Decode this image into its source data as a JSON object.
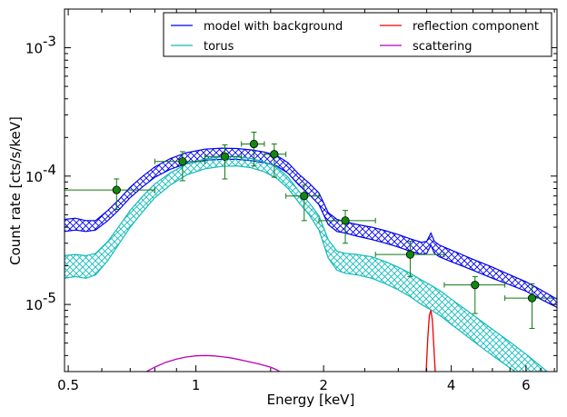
{
  "chart_data": {
    "type": "line",
    "xlabel": "Energy [keV]",
    "ylabel": "Count rate [cts/s/keV]",
    "x_scale": "log",
    "y_scale": "log",
    "xlim": [
      0.49,
      7.1
    ],
    "ylim": [
      3e-06,
      0.002
    ],
    "x_ticks": [
      {
        "value": 0.5,
        "label": "0.5"
      },
      {
        "value": 1,
        "label": "1"
      },
      {
        "value": 2,
        "label": "2"
      },
      {
        "value": 4,
        "label": "4"
      },
      {
        "value": 6,
        "label": "6"
      }
    ],
    "y_ticks": [
      {
        "value": 1e-05,
        "base": "10",
        "exp": "-5"
      },
      {
        "value": 0.0001,
        "base": "10",
        "exp": "-4"
      },
      {
        "value": 0.001,
        "base": "10",
        "exp": "-3"
      }
    ],
    "legend": {
      "placement": "top-right",
      "columns": 2,
      "entries": [
        {
          "label": "model with background",
          "color": "#0000ee"
        },
        {
          "label": "reflection component",
          "color": "#ee0000"
        },
        {
          "label": "torus",
          "color": "#11bbbb"
        },
        {
          "label": "scattering",
          "color": "#bb00bb"
        }
      ]
    },
    "grid": false,
    "series": [
      {
        "name": "model with background",
        "color": "#0000ee",
        "style": "hatched-band",
        "x": [
          0.49,
          0.52,
          0.55,
          0.58,
          0.62,
          0.66,
          0.7,
          0.75,
          0.8,
          0.87,
          0.95,
          1.05,
          1.15,
          1.25,
          1.35,
          1.45,
          1.55,
          1.65,
          1.75,
          1.85,
          1.95,
          2.05,
          2.15,
          2.25,
          2.4,
          2.6,
          2.8,
          3.0,
          3.2,
          3.4,
          3.5,
          3.58,
          3.65,
          3.75,
          4.0,
          4.5,
          5.0,
          5.5,
          6.0,
          6.5,
          7.1
        ],
        "lower": [
          3.7e-05,
          3.8e-05,
          3.7e-05,
          3.8e-05,
          4.5e-05,
          5.5e-05,
          6.8e-05,
          8.3e-05,
          9.8e-05,
          0.000113,
          0.000125,
          0.000133,
          0.000135,
          0.000135,
          0.000132,
          0.000127,
          0.00012,
          0.000105,
          8.5e-05,
          7.2e-05,
          6e-05,
          4.2e-05,
          3.7e-05,
          3.6e-05,
          3.4e-05,
          3.2e-05,
          3e-05,
          2.8e-05,
          2.6e-05,
          2.45e-05,
          2.5e-05,
          2.9e-05,
          2.5e-05,
          2.35e-05,
          2.15e-05,
          1.85e-05,
          1.6e-05,
          1.42e-05,
          1.27e-05,
          1.1e-05,
          9.5e-06
        ],
        "upper": [
          4.6e-05,
          4.7e-05,
          4.5e-05,
          4.5e-05,
          5.4e-05,
          6.6e-05,
          8.2e-05,
          0.0001,
          0.000118,
          0.000137,
          0.000152,
          0.000162,
          0.000165,
          0.000164,
          0.00016,
          0.000154,
          0.000145,
          0.000127,
          0.000103,
          8.8e-05,
          7.4e-05,
          5.2e-05,
          4.6e-05,
          4.4e-05,
          4.2e-05,
          4e-05,
          3.75e-05,
          3.5e-05,
          3.25e-05,
          3.05e-05,
          3.1e-05,
          3.6e-05,
          3.1e-05,
          2.9e-05,
          2.65e-05,
          2.25e-05,
          1.95e-05,
          1.7e-05,
          1.5e-05,
          1.3e-05,
          1.1e-05
        ]
      },
      {
        "name": "torus",
        "color": "#11bbbb",
        "style": "hatched-band",
        "x": [
          0.49,
          0.52,
          0.55,
          0.58,
          0.62,
          0.66,
          0.7,
          0.75,
          0.8,
          0.87,
          0.95,
          1.05,
          1.15,
          1.25,
          1.35,
          1.45,
          1.55,
          1.65,
          1.75,
          1.85,
          1.95,
          2.05,
          2.15,
          2.25,
          2.4,
          2.6,
          2.8,
          3.0,
          3.2,
          3.4,
          3.6,
          3.8,
          4.0,
          4.5,
          5.0,
          5.5,
          6.0,
          6.5,
          7.1
        ],
        "lower": [
          1.6e-05,
          1.65e-05,
          1.6e-05,
          1.7e-05,
          2.2e-05,
          3e-05,
          4e-05,
          5.3e-05,
          6.8e-05,
          8.5e-05,
          0.000102,
          0.000114,
          0.000119,
          0.00012,
          0.000116,
          0.000108,
          9.6e-05,
          8e-05,
          6.2e-05,
          5e-05,
          3.8e-05,
          2.3e-05,
          1.85e-05,
          1.75e-05,
          1.7e-05,
          1.6e-05,
          1.45e-05,
          1.3e-05,
          1.15e-05,
          1e-05,
          9e-06,
          8e-06,
          7e-06,
          5.2e-06,
          4e-06,
          3.2e-06,
          2.6e-06,
          2.1e-06,
          1.7e-06
        ],
        "upper": [
          2.4e-05,
          2.45e-05,
          2.4e-05,
          2.5e-05,
          3.1e-05,
          4.1e-05,
          5.4e-05,
          7e-05,
          8.7e-05,
          0.000106,
          0.000124,
          0.000136,
          0.000141,
          0.000141,
          0.000137,
          0.000129,
          0.000118,
          9.8e-05,
          7.6e-05,
          6.2e-05,
          4.9e-05,
          3.2e-05,
          2.6e-05,
          2.5e-05,
          2.45e-05,
          2.35e-05,
          2.15e-05,
          1.95e-05,
          1.75e-05,
          1.55e-05,
          1.4e-05,
          1.25e-05,
          1.1e-05,
          8.3e-06,
          6.4e-06,
          5.1e-06,
          4.1e-06,
          3.3e-06,
          2.6e-06
        ]
      },
      {
        "name": "reflection component",
        "color": "#ee0000",
        "style": "line",
        "x": [
          3.46,
          3.49,
          3.52,
          3.55,
          3.58,
          3.61,
          3.64,
          3.67,
          3.7
        ],
        "y": [
          1.5e-06,
          3e-06,
          5.5e-06,
          8.2e-06,
          9e-06,
          7.5e-06,
          4.5e-06,
          2.8e-06,
          1.5e-06
        ]
      },
      {
        "name": "scattering",
        "color": "#bb00bb",
        "style": "line",
        "x": [
          0.75,
          0.8,
          0.85,
          0.9,
          0.95,
          1.0,
          1.05,
          1.1,
          1.15,
          1.2,
          1.25,
          1.3,
          1.35,
          1.4,
          1.45,
          1.5,
          1.55,
          1.6
        ],
        "y": [
          2.9e-06,
          3.25e-06,
          3.55e-06,
          3.75e-06,
          3.9e-06,
          3.98e-06,
          4e-06,
          3.98e-06,
          3.92e-06,
          3.85e-06,
          3.75e-06,
          3.65e-06,
          3.55e-06,
          3.45e-06,
          3.35e-06,
          3.25e-06,
          3.1e-06,
          2.9e-06
        ]
      }
    ],
    "data_points": {
      "color": "#117711",
      "marker_fill": "#118811",
      "points": [
        {
          "x": 0.65,
          "y": 7.8e-05,
          "xerr": [
            0.49,
            0.8
          ],
          "yerr": [
            5.5e-05,
            9.5e-05
          ]
        },
        {
          "x": 0.93,
          "y": 0.00013,
          "xerr": [
            0.8,
            1.05
          ],
          "yerr": [
            9.2e-05,
            0.000155
          ]
        },
        {
          "x": 1.17,
          "y": 0.000142,
          "xerr": [
            1.05,
            1.28
          ],
          "yerr": [
            9.5e-05,
            0.000175
          ]
        },
        {
          "x": 1.37,
          "y": 0.000178,
          "xerr": [
            1.28,
            1.45
          ],
          "yerr": [
            0.00012,
            0.00022
          ]
        },
        {
          "x": 1.53,
          "y": 0.000148,
          "xerr": [
            1.45,
            1.63
          ],
          "yerr": [
            9.8e-05,
            0.000178
          ]
        },
        {
          "x": 1.8,
          "y": 7e-05,
          "xerr": [
            1.63,
            1.95
          ],
          "yerr": [
            4.5e-05,
            8.5e-05
          ]
        },
        {
          "x": 2.25,
          "y": 4.5e-05,
          "xerr": [
            1.95,
            2.65
          ],
          "yerr": [
            3e-05,
            5.4e-05
          ]
        },
        {
          "x": 3.2,
          "y": 2.45e-05,
          "xerr": [
            2.65,
            3.85
          ],
          "yerr": [
            1.65e-05,
            3.1e-05
          ]
        },
        {
          "x": 4.55,
          "y": 1.42e-05,
          "xerr": [
            3.85,
            5.35
          ],
          "yerr": [
            8.5e-06,
            1.65e-05
          ]
        },
        {
          "x": 6.2,
          "y": 1.12e-05,
          "xerr": [
            5.35,
            7.1
          ],
          "yerr": [
            6.5e-06,
            1.45e-05
          ]
        }
      ]
    }
  }
}
